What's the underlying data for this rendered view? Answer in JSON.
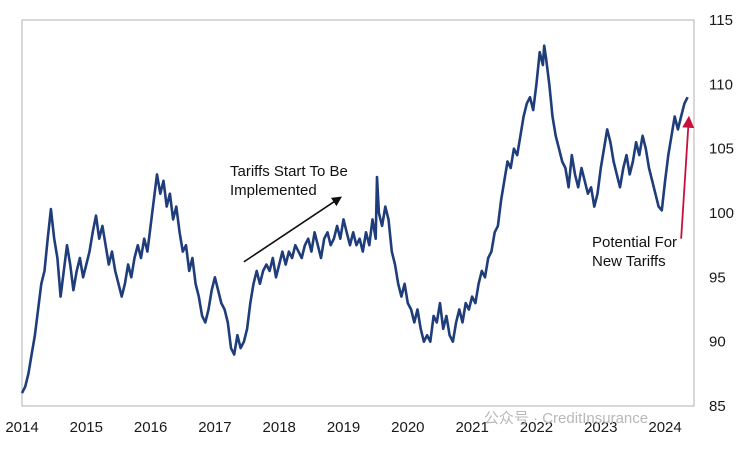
{
  "chart_data": {
    "type": "line",
    "title": "",
    "xlabel": "",
    "ylabel": "",
    "xlim": [
      2014.0,
      2024.45
    ],
    "ylim": [
      85,
      115
    ],
    "x_ticks": [
      "2014",
      "2015",
      "2016",
      "2017",
      "2018",
      "2019",
      "2020",
      "2021",
      "2022",
      "2023",
      "2024"
    ],
    "y_ticks": [
      "85",
      "90",
      "95",
      "100",
      "105",
      "110",
      "115"
    ],
    "y_axis_side": "right",
    "grid": false,
    "legend": "none",
    "line_color": "#1f3d7a",
    "series": [
      {
        "values": [
          [
            2014.0,
            86.0
          ],
          [
            2014.05,
            86.5
          ],
          [
            2014.1,
            87.5
          ],
          [
            2014.15,
            89.0
          ],
          [
            2014.2,
            90.5
          ],
          [
            2014.25,
            92.5
          ],
          [
            2014.3,
            94.5
          ],
          [
            2014.35,
            95.5
          ],
          [
            2014.4,
            98.0
          ],
          [
            2014.45,
            100.3
          ],
          [
            2014.5,
            98.0
          ],
          [
            2014.55,
            96.5
          ],
          [
            2014.6,
            93.5
          ],
          [
            2014.65,
            95.5
          ],
          [
            2014.7,
            97.5
          ],
          [
            2014.75,
            96.0
          ],
          [
            2014.8,
            94.0
          ],
          [
            2014.85,
            95.5
          ],
          [
            2014.9,
            96.5
          ],
          [
            2014.95,
            95.0
          ],
          [
            2015.0,
            96.0
          ],
          [
            2015.05,
            97.0
          ],
          [
            2015.1,
            98.5
          ],
          [
            2015.15,
            99.8
          ],
          [
            2015.2,
            98.0
          ],
          [
            2015.25,
            99.0
          ],
          [
            2015.3,
            97.5
          ],
          [
            2015.35,
            96.0
          ],
          [
            2015.4,
            97.0
          ],
          [
            2015.45,
            95.5
          ],
          [
            2015.5,
            94.5
          ],
          [
            2015.55,
            93.5
          ],
          [
            2015.6,
            94.5
          ],
          [
            2015.65,
            96.0
          ],
          [
            2015.7,
            95.0
          ],
          [
            2015.75,
            96.5
          ],
          [
            2015.8,
            97.5
          ],
          [
            2015.85,
            96.5
          ],
          [
            2015.9,
            98.0
          ],
          [
            2015.95,
            97.0
          ],
          [
            2016.0,
            99.0
          ],
          [
            2016.05,
            101.0
          ],
          [
            2016.1,
            103.0
          ],
          [
            2016.15,
            101.5
          ],
          [
            2016.2,
            102.5
          ],
          [
            2016.25,
            100.5
          ],
          [
            2016.3,
            101.5
          ],
          [
            2016.35,
            99.5
          ],
          [
            2016.4,
            100.5
          ],
          [
            2016.45,
            98.5
          ],
          [
            2016.5,
            97.0
          ],
          [
            2016.55,
            97.5
          ],
          [
            2016.6,
            95.5
          ],
          [
            2016.65,
            96.5
          ],
          [
            2016.7,
            94.5
          ],
          [
            2016.75,
            93.5
          ],
          [
            2016.8,
            92.0
          ],
          [
            2016.85,
            91.5
          ],
          [
            2016.9,
            92.5
          ],
          [
            2016.95,
            94.0
          ],
          [
            2017.0,
            95.0
          ],
          [
            2017.05,
            94.0
          ],
          [
            2017.1,
            93.0
          ],
          [
            2017.15,
            92.5
          ],
          [
            2017.2,
            91.5
          ],
          [
            2017.25,
            89.5
          ],
          [
            2017.3,
            89.0
          ],
          [
            2017.35,
            90.5
          ],
          [
            2017.4,
            89.5
          ],
          [
            2017.45,
            90.0
          ],
          [
            2017.5,
            91.0
          ],
          [
            2017.55,
            93.0
          ],
          [
            2017.6,
            94.5
          ],
          [
            2017.65,
            95.5
          ],
          [
            2017.7,
            94.5
          ],
          [
            2017.75,
            95.5
          ],
          [
            2017.8,
            96.0
          ],
          [
            2017.85,
            95.5
          ],
          [
            2017.9,
            96.5
          ],
          [
            2017.95,
            95.0
          ],
          [
            2018.0,
            96.0
          ],
          [
            2018.05,
            97.0
          ],
          [
            2018.1,
            96.0
          ],
          [
            2018.15,
            97.0
          ],
          [
            2018.2,
            96.5
          ],
          [
            2018.25,
            97.5
          ],
          [
            2018.3,
            97.0
          ],
          [
            2018.35,
            96.5
          ],
          [
            2018.4,
            97.5
          ],
          [
            2018.45,
            98.0
          ],
          [
            2018.5,
            97.0
          ],
          [
            2018.55,
            98.5
          ],
          [
            2018.6,
            97.5
          ],
          [
            2018.65,
            96.5
          ],
          [
            2018.7,
            98.0
          ],
          [
            2018.75,
            98.5
          ],
          [
            2018.8,
            97.5
          ],
          [
            2018.85,
            98.0
          ],
          [
            2018.9,
            99.0
          ],
          [
            2018.95,
            98.0
          ],
          [
            2019.0,
            99.5
          ],
          [
            2019.05,
            98.5
          ],
          [
            2019.1,
            97.5
          ],
          [
            2019.15,
            98.5
          ],
          [
            2019.2,
            97.5
          ],
          [
            2019.25,
            98.0
          ],
          [
            2019.3,
            97.0
          ],
          [
            2019.35,
            98.5
          ],
          [
            2019.4,
            97.5
          ],
          [
            2019.45,
            99.5
          ],
          [
            2019.5,
            98.0
          ],
          [
            2019.52,
            102.8
          ],
          [
            2019.55,
            100.0
          ],
          [
            2019.6,
            99.0
          ],
          [
            2019.65,
            100.5
          ],
          [
            2019.7,
            99.5
          ],
          [
            2019.75,
            97.0
          ],
          [
            2019.8,
            96.0
          ],
          [
            2019.85,
            94.5
          ],
          [
            2019.9,
            93.5
          ],
          [
            2019.95,
            94.5
          ],
          [
            2020.0,
            93.0
          ],
          [
            2020.05,
            92.5
          ],
          [
            2020.1,
            91.5
          ],
          [
            2020.15,
            92.5
          ],
          [
            2020.2,
            91.0
          ],
          [
            2020.25,
            90.0
          ],
          [
            2020.3,
            90.5
          ],
          [
            2020.35,
            90.0
          ],
          [
            2020.4,
            92.0
          ],
          [
            2020.45,
            91.5
          ],
          [
            2020.5,
            93.0
          ],
          [
            2020.55,
            91.0
          ],
          [
            2020.6,
            92.0
          ],
          [
            2020.65,
            90.5
          ],
          [
            2020.7,
            90.0
          ],
          [
            2020.75,
            91.5
          ],
          [
            2020.8,
            92.5
          ],
          [
            2020.85,
            91.5
          ],
          [
            2020.9,
            93.0
          ],
          [
            2020.95,
            92.5
          ],
          [
            2021.0,
            93.5
          ],
          [
            2021.05,
            93.0
          ],
          [
            2021.1,
            94.5
          ],
          [
            2021.15,
            95.5
          ],
          [
            2021.2,
            95.0
          ],
          [
            2021.25,
            96.5
          ],
          [
            2021.3,
            97.0
          ],
          [
            2021.35,
            98.5
          ],
          [
            2021.4,
            99.0
          ],
          [
            2021.45,
            101.0
          ],
          [
            2021.5,
            102.5
          ],
          [
            2021.55,
            104.0
          ],
          [
            2021.6,
            103.5
          ],
          [
            2021.65,
            105.0
          ],
          [
            2021.7,
            104.5
          ],
          [
            2021.75,
            106.0
          ],
          [
            2021.8,
            107.5
          ],
          [
            2021.85,
            108.5
          ],
          [
            2021.9,
            109.0
          ],
          [
            2021.95,
            108.0
          ],
          [
            2022.0,
            110.0
          ],
          [
            2022.05,
            112.5
          ],
          [
            2022.1,
            111.5
          ],
          [
            2022.12,
            113.0
          ],
          [
            2022.15,
            112.0
          ],
          [
            2022.2,
            110.0
          ],
          [
            2022.25,
            107.5
          ],
          [
            2022.3,
            106.0
          ],
          [
            2022.35,
            105.0
          ],
          [
            2022.4,
            104.0
          ],
          [
            2022.45,
            103.5
          ],
          [
            2022.5,
            102.0
          ],
          [
            2022.55,
            104.5
          ],
          [
            2022.6,
            103.0
          ],
          [
            2022.65,
            102.0
          ],
          [
            2022.7,
            103.5
          ],
          [
            2022.75,
            102.5
          ],
          [
            2022.8,
            101.5
          ],
          [
            2022.85,
            102.0
          ],
          [
            2022.9,
            100.5
          ],
          [
            2022.95,
            101.5
          ],
          [
            2023.0,
            103.5
          ],
          [
            2023.05,
            105.0
          ],
          [
            2023.1,
            106.5
          ],
          [
            2023.15,
            105.5
          ],
          [
            2023.2,
            104.0
          ],
          [
            2023.25,
            103.0
          ],
          [
            2023.3,
            102.0
          ],
          [
            2023.35,
            103.5
          ],
          [
            2023.4,
            104.5
          ],
          [
            2023.45,
            103.0
          ],
          [
            2023.5,
            104.0
          ],
          [
            2023.55,
            105.5
          ],
          [
            2023.6,
            104.5
          ],
          [
            2023.65,
            106.0
          ],
          [
            2023.7,
            105.0
          ],
          [
            2023.75,
            103.5
          ],
          [
            2023.8,
            102.5
          ],
          [
            2023.85,
            101.5
          ],
          [
            2023.9,
            100.5
          ],
          [
            2023.95,
            100.2
          ],
          [
            2024.0,
            102.5
          ],
          [
            2024.05,
            104.5
          ],
          [
            2024.1,
            106.0
          ],
          [
            2024.15,
            107.5
          ],
          [
            2024.2,
            106.5
          ],
          [
            2024.25,
            107.5
          ],
          [
            2024.3,
            108.5
          ],
          [
            2024.35,
            109.0
          ]
        ]
      }
    ],
    "annotations": [
      {
        "text": "Tariffs Start To Be Implemented",
        "lines": [
          "Tariffs Start To Be",
          "Implemented"
        ],
        "arrow_from": [
          2017.45,
          96.2
        ],
        "arrow_to": [
          2018.95,
          101.2
        ],
        "arrow_color": "#111111"
      },
      {
        "text": "Potential For New Tariffs",
        "lines": [
          "Potential For",
          "New Tariffs"
        ],
        "arrow_from": [
          2024.25,
          98.0
        ],
        "arrow_to": [
          2024.37,
          107.4
        ],
        "arrow_color": "#c8103e"
      }
    ]
  },
  "watermark": "公众号 · CreditInsurance"
}
